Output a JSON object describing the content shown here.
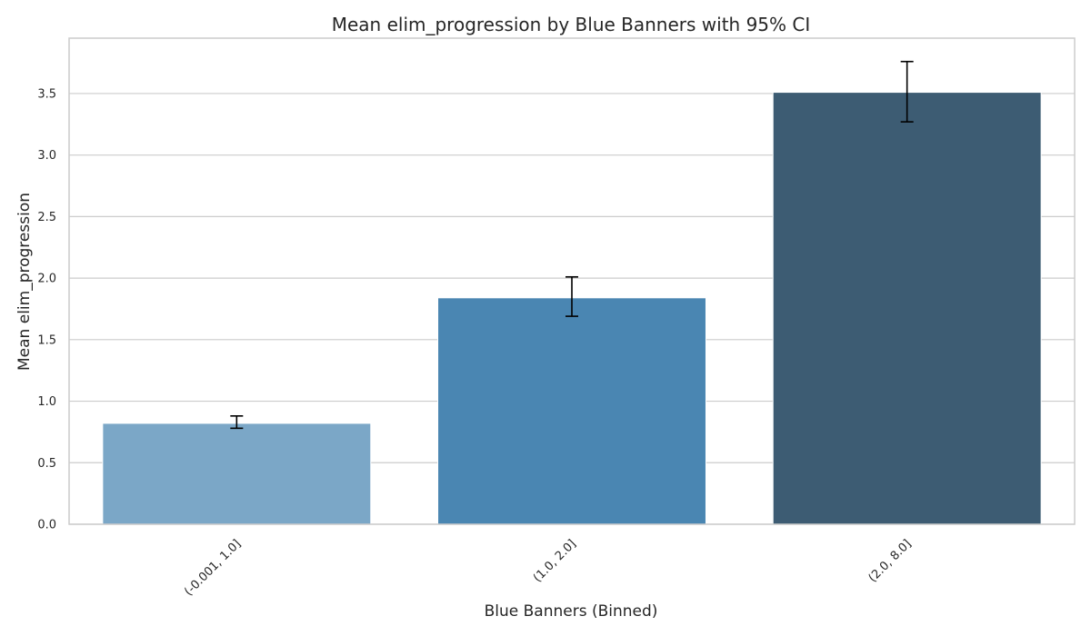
{
  "chart_data": {
    "type": "bar",
    "title": "Mean elim_progression by Blue Banners with 95% CI",
    "xlabel": "Blue Banners (Binned)",
    "ylabel": "Mean elim_progression",
    "categories": [
      "(-0.001, 1.0]",
      "(1.0, 2.0]",
      "(2.0, 8.0]"
    ],
    "values": [
      0.82,
      1.84,
      3.51
    ],
    "ci_lower": [
      0.78,
      1.69,
      3.27
    ],
    "ci_upper": [
      0.88,
      2.01,
      3.76
    ],
    "colors": [
      "#7ba7c7",
      "#4a86b2",
      "#3d5c73"
    ],
    "ylim": [
      0,
      3.95
    ],
    "yticks": [
      0.0,
      0.5,
      1.0,
      1.5,
      2.0,
      2.5,
      3.0,
      3.5
    ],
    "ytick_labels": [
      "0.0",
      "0.5",
      "1.0",
      "1.5",
      "2.0",
      "2.5",
      "3.0",
      "3.5"
    ],
    "grid": "horizontal",
    "error_bar_color": "#000000"
  }
}
